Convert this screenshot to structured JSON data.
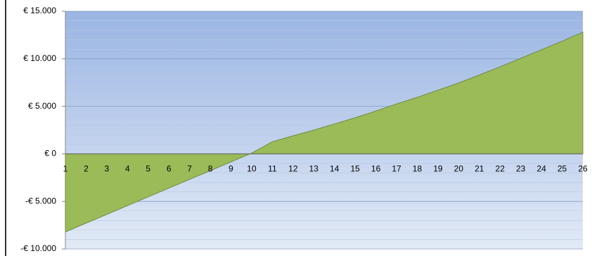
{
  "chart_data": {
    "type": "area",
    "categories": [
      "1",
      "2",
      "3",
      "4",
      "5",
      "6",
      "7",
      "8",
      "9",
      "10",
      "11",
      "12",
      "13",
      "14",
      "15",
      "16",
      "17",
      "18",
      "19",
      "20",
      "21",
      "22",
      "23",
      "24",
      "25",
      "26"
    ],
    "values": [
      -8200,
      -7280,
      -6360,
      -5440,
      -4520,
      -3600,
      -2680,
      -1760,
      -840,
      80,
      1280,
      1900,
      2500,
      3150,
      3800,
      4500,
      5250,
      5950,
      6700,
      7450,
      8300,
      9150,
      10050,
      10950,
      11850,
      12800
    ],
    "color": "#9bbb59",
    "ylim": [
      -10000,
      15000
    ],
    "yticks": [
      {
        "value": -10000,
        "label": "-€ 10.000"
      },
      {
        "value": -5000,
        "label": "-€ 5.000"
      },
      {
        "value": 0,
        "label": "€ 0"
      },
      {
        "value": 5000,
        "label": "€ 5.000"
      },
      {
        "value": 10000,
        "label": "€ 10.000"
      },
      {
        "value": 15000,
        "label": "€ 15.000"
      }
    ],
    "grid": true
  }
}
